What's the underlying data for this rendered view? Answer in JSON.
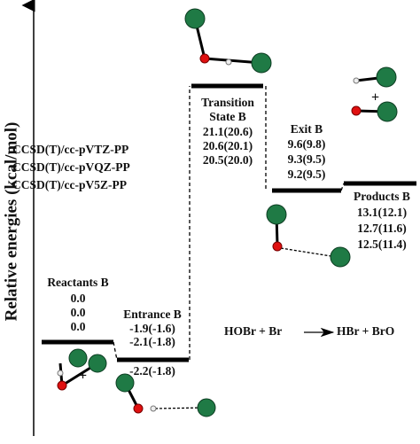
{
  "axis_label": "Relative energies (kcal/mol)",
  "methods": [
    "CCSD(T)/cc-pVTZ-PP",
    "CCSD(T)/cc-pVQZ-PP",
    "CCSD(T)/cc-pV5Z-PP"
  ],
  "states": [
    {
      "name": [
        "Reactants B"
      ],
      "energies": [
        "0.0",
        "0.0",
        "0.0"
      ]
    },
    {
      "name": [
        "Entrance B"
      ],
      "energies": [
        "-1.9(-1.6)",
        "-2.1(-1.8)",
        "-2.2(-1.8)"
      ]
    },
    {
      "name": [
        "Transition",
        "State B"
      ],
      "energies": [
        "21.1(20.6)",
        "20.6(20.1)",
        "20.5(20.0)"
      ]
    },
    {
      "name": [
        "Exit B"
      ],
      "energies": [
        "9.6(9.8)",
        "9.3(9.5)",
        "9.2(9.5)"
      ]
    },
    {
      "name": [
        "Products B"
      ],
      "energies": [
        "13.1(12.1)",
        "12.7(11.6)",
        "12.5(11.4)"
      ]
    }
  ],
  "reaction": {
    "left": "HOBr + Br",
    "right": "HBr + BrO"
  }
}
